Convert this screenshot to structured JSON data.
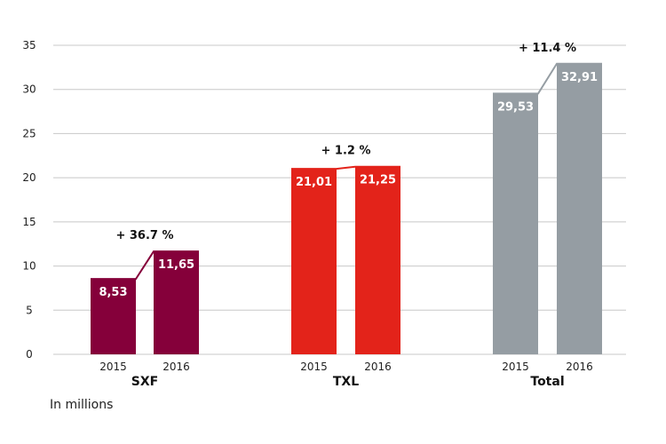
{
  "chart_data": {
    "type": "bar",
    "ylim": [
      0,
      35
    ],
    "yticks": [
      0,
      5,
      10,
      15,
      20,
      25,
      30,
      35
    ],
    "grid": true,
    "groups": [
      {
        "name": "SXF",
        "years": [
          "2015",
          "2016"
        ],
        "values": [
          8.53,
          11.65
        ],
        "value_labels": [
          "8,53",
          "11,65"
        ],
        "change": "+ 36.7 %",
        "color": "#85003a"
      },
      {
        "name": "TXL",
        "years": [
          "2015",
          "2016"
        ],
        "values": [
          21.01,
          21.25
        ],
        "value_labels": [
          "21,01",
          "21,25"
        ],
        "change": "+ 1.2 %",
        "color": "#e3231a"
      },
      {
        "name": "Total",
        "years": [
          "2015",
          "2016"
        ],
        "values": [
          29.53,
          32.91
        ],
        "value_labels": [
          "29,53",
          "32,91"
        ],
        "change": "+ 11.4 %",
        "color": "#959da3"
      }
    ]
  },
  "note": "In millions"
}
